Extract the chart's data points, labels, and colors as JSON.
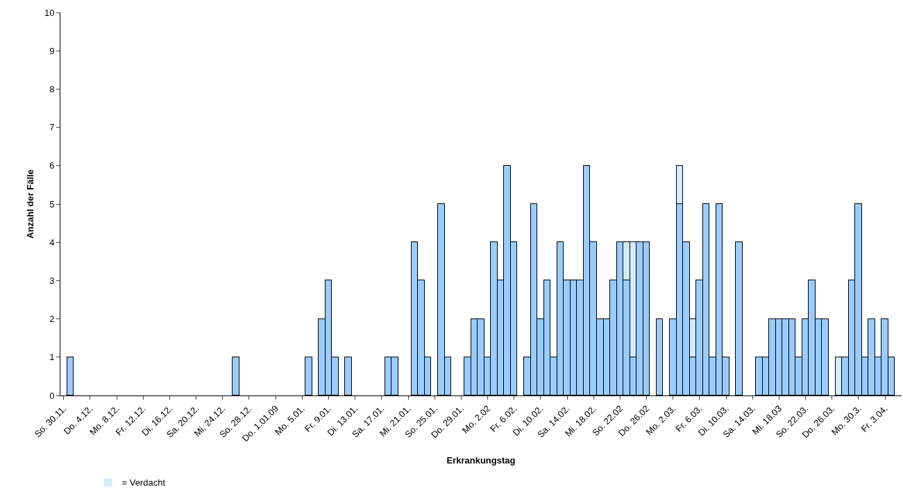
{
  "chart_data": {
    "type": "bar",
    "stacked": true,
    "xlabel": "Erkrankungstag",
    "ylabel": "Anzahl der Fälle",
    "ylim": [
      0,
      10
    ],
    "yticks": [
      0,
      1,
      2,
      3,
      4,
      5,
      6,
      7,
      8,
      9,
      10
    ],
    "grid": false,
    "legend": "bottom left",
    "categories": [
      "So. 30.11.",
      null,
      null,
      null,
      "Do. 4.12.",
      null,
      null,
      null,
      "Mo. 8.12.",
      null,
      null,
      null,
      "Fr. 12.12.",
      null,
      null,
      null,
      "Di. 16.12.",
      null,
      null,
      null,
      "Sa. 20.12.",
      null,
      null,
      null,
      "Mi. 24.12.",
      null,
      null,
      null,
      "So. 28.12.",
      null,
      null,
      null,
      "Do. 1.01.09",
      null,
      null,
      null,
      "Mo. 5.01.",
      null,
      null,
      null,
      "Fr. 9.01.",
      null,
      null,
      null,
      "Di. 13.01.",
      null,
      null,
      null,
      "Sa. 17.01.",
      null,
      null,
      null,
      "Mi. 21.01.",
      null,
      null,
      null,
      "So. 25.01.",
      null,
      null,
      null,
      "Do. 29.01.",
      null,
      null,
      null,
      "Mo. 2.02",
      null,
      null,
      null,
      "Fr. 6.02.",
      null,
      null,
      null,
      "Di. 10.02.",
      null,
      null,
      null,
      "Sa. 14.02.",
      null,
      null,
      null,
      "Mi. 18.02.",
      null,
      null,
      null,
      "So. 22.02",
      null,
      null,
      null,
      "Do. 26.02",
      null,
      null,
      null,
      "Mo. 2.03.",
      null,
      null,
      null,
      "Fr. 6.03.",
      null,
      null,
      null,
      "Di. 10.03.",
      null,
      null,
      null,
      "Sa. 14.03.",
      null,
      null,
      null,
      "Mi. 18.03",
      null,
      null,
      null,
      "So. 22.03.",
      null,
      null,
      null,
      "Do. 26.03.",
      null,
      null,
      null,
      "Mo. 30.3.",
      null,
      null,
      null,
      "Fr. 3.04.",
      null,
      null
    ],
    "series": [
      {
        "color": "#99ccff",
        "values": [
          0,
          1,
          0,
          0,
          0,
          0,
          0,
          0,
          0,
          0,
          0,
          0,
          0,
          0,
          0,
          0,
          0,
          0,
          0,
          0,
          0,
          0,
          0,
          0,
          0,
          0,
          1,
          0,
          0,
          0,
          0,
          0,
          0,
          0,
          0,
          0,
          0,
          1,
          0,
          2,
          3,
          1,
          0,
          1,
          0,
          0,
          0,
          0,
          0,
          1,
          1,
          0,
          0,
          4,
          3,
          1,
          0,
          5,
          1,
          0,
          0,
          1,
          2,
          2,
          1,
          4,
          3,
          6,
          4,
          0,
          1,
          5,
          2,
          3,
          1,
          4,
          3,
          3,
          3,
          6,
          4,
          2,
          2,
          3,
          4,
          3,
          1,
          4,
          4,
          0,
          2,
          0,
          2,
          5,
          4,
          1,
          3,
          5,
          1,
          5,
          1,
          0,
          4,
          0,
          0,
          1,
          1,
          2,
          2,
          2,
          2,
          1,
          2,
          3,
          2,
          2,
          0,
          0,
          1,
          3,
          5,
          1,
          2,
          1,
          2,
          1,
          0
        ]
      },
      {
        "name": "= Verdacht",
        "color": "#d4eaff",
        "values": [
          0,
          0,
          0,
          0,
          0,
          0,
          0,
          0,
          0,
          0,
          0,
          0,
          0,
          0,
          0,
          0,
          0,
          0,
          0,
          0,
          0,
          0,
          0,
          0,
          0,
          0,
          0,
          0,
          0,
          0,
          0,
          0,
          0,
          0,
          0,
          0,
          0,
          0,
          0,
          0,
          0,
          0,
          0,
          0,
          0,
          0,
          0,
          0,
          0,
          0,
          0,
          0,
          0,
          0,
          0,
          0,
          0,
          0,
          0,
          0,
          0,
          0,
          0,
          0,
          0,
          0,
          0,
          0,
          0,
          0,
          0,
          0,
          0,
          0,
          0,
          0,
          0,
          0,
          0,
          0,
          0,
          0,
          0,
          0,
          0,
          1,
          3,
          0,
          0,
          0,
          0,
          0,
          0,
          1,
          0,
          1,
          0,
          0,
          0,
          0,
          0,
          0,
          0,
          0,
          0,
          0,
          0,
          0,
          0,
          0,
          0,
          0,
          0,
          0,
          0,
          0,
          0,
          1,
          0,
          0,
          0,
          0,
          0,
          0,
          0,
          0,
          0
        ]
      }
    ]
  }
}
